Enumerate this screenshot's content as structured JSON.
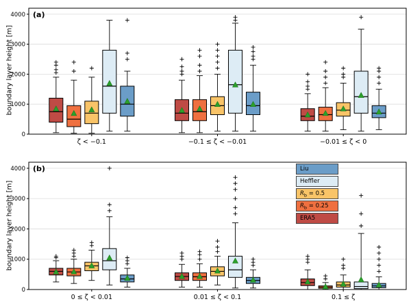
{
  "legend": {
    "items": [
      {
        "label": "Liu",
        "color": "#6b9dc8"
      },
      {
        "label": "Heffler",
        "color": "#ddecf5"
      },
      {
        "label": "R_b = 0.5",
        "color": "#f9c468"
      },
      {
        "label": "R_b = 0.25",
        "color": "#ef7040"
      },
      {
        "label": "ERA5",
        "color": "#bf4b45"
      }
    ]
  },
  "chart_data": [
    {
      "type": "boxplot",
      "panel_label": "(a)",
      "ylabel": "boundary layer height [m]",
      "ylim": [
        0,
        4000
      ],
      "yticks": [
        0,
        1000,
        2000,
        3000,
        4000
      ],
      "grid": "horizontal",
      "categories": [
        "ζ < −0.1",
        "−0.1 ≤ ζ < −0.01",
        "−0.01 ≤ ζ < 0"
      ],
      "mean_marker_color": "#2ca02c",
      "series": [
        {
          "name": "ERA5",
          "color": "#bf4b45",
          "boxes": [
            {
              "lo": 50,
              "q1": 400,
              "med": 750,
              "q3": 1200,
              "hi": 1900,
              "mean": 850,
              "fliers": [
                2050,
                2150,
                2300,
                2400
              ]
            },
            {
              "lo": 50,
              "q1": 450,
              "med": 700,
              "q3": 1150,
              "hi": 1800,
              "mean": 800,
              "fliers": [
                2000,
                2100,
                2250,
                2500
              ]
            },
            {
              "lo": 100,
              "q1": 450,
              "med": 600,
              "q3": 850,
              "hi": 1350,
              "mean": 650,
              "fliers": [
                1500,
                1600,
                1750,
                2000
              ]
            }
          ]
        },
        {
          "name": "R_b = 0.25",
          "color": "#ef7040",
          "boxes": [
            {
              "lo": 30,
              "q1": 250,
              "med": 500,
              "q3": 950,
              "hi": 1800,
              "mean": 700,
              "fliers": [
                2100,
                2400
              ]
            },
            {
              "lo": 50,
              "q1": 450,
              "med": 750,
              "q3": 1150,
              "hi": 1950,
              "mean": 850,
              "fliers": [
                2100,
                2300,
                2600,
                2800
              ]
            },
            {
              "lo": 100,
              "q1": 450,
              "med": 650,
              "q3": 900,
              "hi": 1550,
              "mean": 700,
              "fliers": [
                1700,
                1900,
                2100,
                2400
              ]
            }
          ]
        },
        {
          "name": "R_b = 0.5",
          "color": "#f9c468",
          "boxes": [
            {
              "lo": 30,
              "q1": 350,
              "med": 700,
              "q3": 1100,
              "hi": 1900,
              "mean": 820,
              "fliers": [
                2200
              ]
            },
            {
              "lo": 100,
              "q1": 650,
              "med": 950,
              "q3": 1250,
              "hi": 2000,
              "mean": 1000,
              "fliers": [
                2200,
                2400,
                2600,
                2800,
                3000
              ]
            },
            {
              "lo": 150,
              "q1": 600,
              "med": 800,
              "q3": 1050,
              "hi": 1700,
              "mean": 850,
              "fliers": [
                1900,
                2000,
                2200
              ]
            }
          ]
        },
        {
          "name": "Heffler",
          "color": "#ddecf5",
          "boxes": [
            {
              "lo": 100,
              "q1": 700,
              "med": 1600,
              "q3": 2800,
              "hi": 3800,
              "mean": 1700,
              "fliers": []
            },
            {
              "lo": 100,
              "q1": 700,
              "med": 1650,
              "q3": 2800,
              "hi": 3700,
              "mean": 1650,
              "fliers": [
                3800,
                3900
              ]
            },
            {
              "lo": 100,
              "q1": 700,
              "med": 1250,
              "q3": 2100,
              "hi": 3500,
              "mean": 1300,
              "fliers": [
                3900
              ]
            }
          ]
        },
        {
          "name": "Liu",
          "color": "#6b9dc8",
          "boxes": [
            {
              "lo": 100,
              "q1": 600,
              "med": 1000,
              "q3": 1600,
              "hi": 2100,
              "mean": 1100,
              "fliers": [
                2500,
                2700,
                3800
              ]
            },
            {
              "lo": 100,
              "q1": 650,
              "med": 950,
              "q3": 1400,
              "hi": 2300,
              "mean": 1000,
              "fliers": [
                2500,
                2600,
                2750,
                2900
              ]
            },
            {
              "lo": 150,
              "q1": 550,
              "med": 700,
              "q3": 950,
              "hi": 1500,
              "mean": 750,
              "fliers": [
                1700,
                1900,
                2100,
                2200
              ]
            }
          ]
        }
      ]
    },
    {
      "type": "boxplot",
      "panel_label": "(b)",
      "ylabel": "boundary layer height [m]",
      "ylim": [
        0,
        4000
      ],
      "yticks": [
        0,
        1000,
        2000,
        3000,
        4000
      ],
      "grid": "horizontal",
      "categories": [
        "0 ≤ ζ < 0.01",
        "0.01 ≤ ζ < 0.1",
        "0.1 ≤ ζ"
      ],
      "mean_marker_color": "#2ca02c",
      "series": [
        {
          "name": "ERA5",
          "color": "#bf4b45",
          "boxes": [
            {
              "lo": 250,
              "q1": 480,
              "med": 600,
              "q3": 700,
              "hi": 950,
              "mean": 590,
              "fliers": [
                1050,
                1100
              ]
            },
            {
              "lo": 80,
              "q1": 300,
              "med": 430,
              "q3": 550,
              "hi": 830,
              "mean": 440,
              "fliers": [
                1000,
                1100,
                1200
              ]
            },
            {
              "lo": 0,
              "q1": 130,
              "med": 230,
              "q3": 350,
              "hi": 650,
              "mean": 260,
              "fliers": [
                900,
                1000,
                1100
              ]
            }
          ]
        },
        {
          "name": "R_b = 0.25",
          "color": "#ef7040",
          "boxes": [
            {
              "lo": 200,
              "q1": 450,
              "med": 580,
              "q3": 700,
              "hi": 1000,
              "mean": 590,
              "fliers": [
                1100,
                1200,
                1300
              ]
            },
            {
              "lo": 80,
              "q1": 300,
              "med": 420,
              "q3": 550,
              "hi": 850,
              "mean": 440,
              "fliers": [
                1000,
                1150,
                1250
              ]
            },
            {
              "lo": 0,
              "q1": 40,
              "med": 80,
              "q3": 120,
              "hi": 230,
              "mean": 100,
              "fliers": [
                350,
                450
              ]
            }
          ]
        },
        {
          "name": "R_b = 0.5",
          "color": "#f9c468",
          "boxes": [
            {
              "lo": 300,
              "q1": 620,
              "med": 780,
              "q3": 900,
              "hi": 1300,
              "mean": 790,
              "fliers": [
                1450,
                1550
              ]
            },
            {
              "lo": 150,
              "q1": 450,
              "med": 600,
              "q3": 750,
              "hi": 1100,
              "mean": 620,
              "fliers": [
                1250,
                1400,
                1600
              ]
            },
            {
              "lo": 0,
              "q1": 80,
              "med": 150,
              "q3": 250,
              "hi": 480,
              "mean": 190,
              "fliers": [
                700,
                800,
                1000
              ]
            }
          ]
        },
        {
          "name": "Heffler",
          "color": "#ddecf5",
          "boxes": [
            {
              "lo": 150,
              "q1": 650,
              "med": 950,
              "q3": 1350,
              "hi": 2400,
              "mean": 1050,
              "fliers": [
                2600,
                2800,
                4000
              ]
            },
            {
              "lo": 50,
              "q1": 400,
              "med": 650,
              "q3": 1100,
              "hi": 2200,
              "mean": 950,
              "fliers": [
                2500,
                2700,
                3000,
                3300,
                3500,
                3700
              ]
            },
            {
              "lo": 0,
              "q1": 30,
              "med": 100,
              "q3": 250,
              "hi": 1850,
              "mean": 330,
              "fliers": [
                2100,
                2500,
                3100
              ]
            }
          ]
        },
        {
          "name": "Liu",
          "color": "#6b9dc8",
          "boxes": [
            {
              "lo": 80,
              "q1": 250,
              "med": 350,
              "q3": 480,
              "hi": 700,
              "mean": 380,
              "fliers": [
                850,
                950,
                1050
              ]
            },
            {
              "lo": 50,
              "q1": 200,
              "med": 300,
              "q3": 400,
              "hi": 650,
              "mean": 320,
              "fliers": [
                800,
                900,
                1000
              ]
            },
            {
              "lo": 0,
              "q1": 60,
              "med": 120,
              "q3": 200,
              "hi": 420,
              "mean": 160,
              "fliers": [
                600,
                800,
                1000,
                1200,
                1400
              ]
            }
          ]
        }
      ]
    }
  ]
}
